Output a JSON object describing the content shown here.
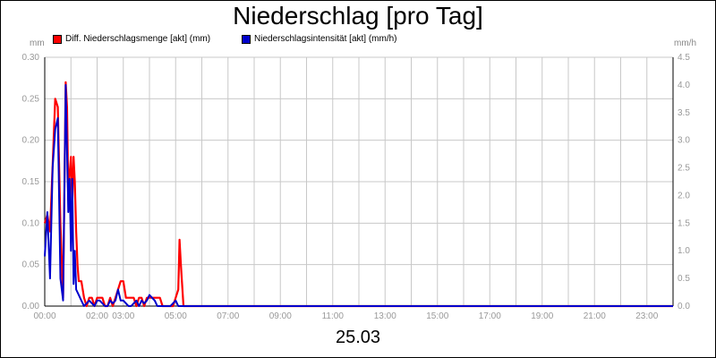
{
  "chart_data": {
    "type": "line",
    "title": "Niederschlag [pro Tag]",
    "date_label": "25.03",
    "left_axis": {
      "unit": "mm",
      "ylim": [
        0,
        0.3
      ],
      "ticks": [
        0.0,
        0.05,
        0.1,
        0.15,
        0.2,
        0.25,
        0.3
      ],
      "tick_labels": [
        "0.00",
        "0.05",
        "0.10",
        "0.15",
        "0.20",
        "0.25",
        "0.30"
      ]
    },
    "right_axis": {
      "unit": "mm/h",
      "ylim": [
        0,
        4.5
      ],
      "ticks": [
        0,
        0.5,
        1,
        1.5,
        2,
        2.5,
        3,
        3.5,
        4,
        4.5
      ],
      "tick_labels": [
        "0.0",
        "0.5",
        "1.0",
        "1.5",
        "2.0",
        "2.5",
        "3.0",
        "3.5",
        "4.0",
        "4.5"
      ]
    },
    "x_axis": {
      "range_hours": [
        0,
        24
      ],
      "tick_labels": [
        "00:00",
        "02:00",
        "03:00",
        "05:00",
        "07:00",
        "09:00",
        "11:00",
        "13:00",
        "15:00",
        "17:00",
        "19:00",
        "21:00",
        "23:00"
      ],
      "tick_hours": [
        0,
        2,
        3,
        5,
        7,
        9,
        11,
        13,
        15,
        17,
        19,
        21,
        23
      ],
      "grid_hours": [
        0,
        1,
        2,
        3,
        4,
        5,
        6,
        7,
        8,
        9,
        10,
        11,
        12,
        13,
        14,
        15,
        16,
        17,
        18,
        19,
        20,
        21,
        22,
        23,
        24
      ]
    },
    "grid": true,
    "legend_position": "top-left",
    "series": [
      {
        "name": "Diff. Niederschlagsmenge [akt] (mm)",
        "color": "#ff0000",
        "axis": "left",
        "x": [
          0.0,
          0.1,
          0.2,
          0.3,
          0.4,
          0.5,
          0.6,
          0.7,
          0.8,
          0.85,
          0.9,
          1.0,
          1.05,
          1.1,
          1.15,
          1.2,
          1.25,
          1.3,
          1.4,
          1.5,
          1.6,
          1.7,
          1.8,
          1.9,
          2.0,
          2.1,
          2.2,
          2.3,
          2.4,
          2.5,
          2.6,
          2.7,
          2.8,
          2.9,
          3.0,
          3.1,
          3.2,
          3.3,
          3.4,
          3.5,
          3.6,
          3.7,
          3.8,
          3.9,
          4.0,
          4.1,
          4.2,
          4.3,
          4.4,
          4.5,
          4.6,
          4.7,
          4.8,
          4.9,
          5.0,
          5.1,
          5.15,
          5.2,
          5.3,
          5.4,
          6.0,
          24.0
        ],
        "y": [
          0.1,
          0.11,
          0.09,
          0.17,
          0.25,
          0.24,
          0.1,
          0.01,
          0.27,
          0.24,
          0.14,
          0.18,
          0.12,
          0.18,
          0.15,
          0.09,
          0.05,
          0.03,
          0.03,
          0.01,
          0.0,
          0.01,
          0.01,
          0.0,
          0.01,
          0.01,
          0.01,
          0.0,
          0.0,
          0.01,
          0.0,
          0.01,
          0.02,
          0.03,
          0.03,
          0.01,
          0.01,
          0.01,
          0.01,
          0.0,
          0.01,
          0.01,
          0.0,
          0.01,
          0.01,
          0.01,
          0.01,
          0.01,
          0.01,
          0.0,
          0.0,
          0.0,
          0.0,
          0.0,
          0.01,
          0.02,
          0.08,
          0.05,
          0.0,
          0.0,
          0.0,
          0.0
        ]
      },
      {
        "name": "Niederschlagsintensität [akt] (mm/h)",
        "color": "#0000cc",
        "axis": "right",
        "x": [
          0.0,
          0.1,
          0.2,
          0.3,
          0.4,
          0.5,
          0.6,
          0.7,
          0.8,
          0.9,
          0.95,
          1.0,
          1.05,
          1.1,
          1.15,
          1.2,
          1.3,
          1.4,
          1.5,
          1.6,
          1.7,
          1.8,
          1.9,
          2.0,
          2.1,
          2.2,
          2.3,
          2.4,
          2.5,
          2.6,
          2.7,
          2.8,
          2.9,
          3.0,
          3.1,
          3.2,
          3.3,
          3.4,
          3.5,
          3.6,
          3.7,
          3.8,
          3.9,
          4.0,
          4.1,
          4.2,
          4.3,
          4.4,
          4.5,
          4.6,
          4.7,
          4.8,
          4.9,
          5.0,
          5.1,
          5.2,
          5.3,
          6.0,
          24.0
        ],
        "y": [
          0.9,
          1.7,
          0.5,
          2.5,
          3.2,
          3.4,
          0.5,
          0.1,
          4.0,
          1.7,
          2.3,
          1.0,
          2.3,
          0.4,
          1.0,
          0.3,
          0.2,
          0.1,
          0.0,
          0.05,
          0.1,
          0.05,
          0.0,
          0.1,
          0.1,
          0.05,
          0.0,
          0.0,
          0.1,
          0.05,
          0.1,
          0.3,
          0.1,
          0.1,
          0.05,
          0.0,
          0.0,
          0.05,
          0.1,
          0.0,
          0.1,
          0.05,
          0.1,
          0.2,
          0.15,
          0.1,
          0.0,
          0.0,
          0.0,
          0.0,
          0.0,
          0.0,
          0.05,
          0.1,
          0.0,
          0.0,
          0.0,
          0.0,
          0.0
        ]
      }
    ]
  }
}
